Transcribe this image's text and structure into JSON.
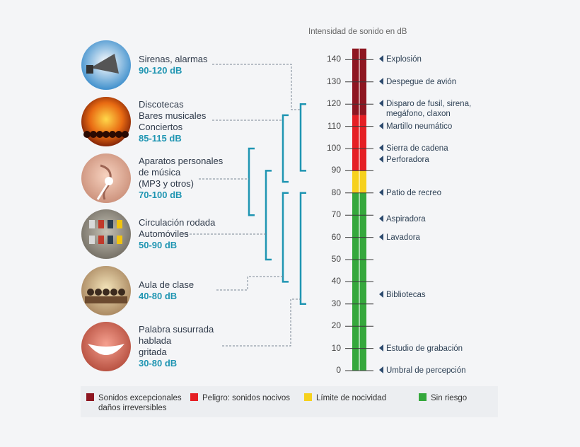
{
  "scale": {
    "title": "Intensidad de sonido en dB",
    "ticks": [
      0,
      10,
      20,
      30,
      40,
      50,
      60,
      70,
      80,
      90,
      100,
      110,
      120,
      130,
      140
    ],
    "bands": [
      {
        "from": 0,
        "to": 80,
        "color": "#35a83c",
        "level": "Sin riesgo"
      },
      {
        "from": 80,
        "to": 90,
        "color": "#f6d11d",
        "level": "Límite de nocividad"
      },
      {
        "from": 90,
        "to": 115,
        "color": "#e51f24",
        "level": "Peligro"
      },
      {
        "from": 115,
        "to": 145,
        "color": "#8e1621",
        "level": "Sonidos excepcionales"
      }
    ]
  },
  "sources": [
    {
      "id": "sirens",
      "icon": "megaphone-icon",
      "lines": [
        "Sirenas, alarmas"
      ],
      "range": "90-120 dB",
      "min": 90,
      "max": 120
    },
    {
      "id": "disco",
      "icon": "concert-crowd-icon",
      "lines": [
        "Discotecas",
        "Bares musicales",
        "Conciertos"
      ],
      "range": "85-115 dB",
      "min": 85,
      "max": 115
    },
    {
      "id": "personal-audio",
      "icon": "earphone-icon",
      "lines": [
        "Aparatos personales",
        "de música",
        "(MP3 y otros)"
      ],
      "range": "70-100 dB",
      "min": 70,
      "max": 100
    },
    {
      "id": "traffic",
      "icon": "road-traffic-icon",
      "lines": [
        "Circulación rodada",
        "Automóviles"
      ],
      "range": "50-90 dB",
      "min": 50,
      "max": 90
    },
    {
      "id": "classroom",
      "icon": "classroom-icon",
      "lines": [
        "Aula de clase"
      ],
      "range": "40-80 dB",
      "min": 40,
      "max": 80
    },
    {
      "id": "speech",
      "icon": "smiling-mouth-icon",
      "lines": [
        "Palabra susurrada",
        "hablada",
        "gritada"
      ],
      "range": "30-80 dB",
      "min": 30,
      "max": 80
    }
  ],
  "events": [
    {
      "db": 140,
      "lines": [
        "Explosión"
      ]
    },
    {
      "db": 130,
      "lines": [
        "Despegue de avión"
      ]
    },
    {
      "db": 120,
      "lines": [
        "Disparo de fusil, sirena,",
        "megáfono, claxon"
      ]
    },
    {
      "db": 110,
      "lines": [
        "Martillo neumático"
      ]
    },
    {
      "db": 100,
      "lines": [
        "Sierra de cadena"
      ]
    },
    {
      "db": 95,
      "lines": [
        "Perforadora"
      ]
    },
    {
      "db": 80,
      "lines": [
        "Patio de recreo"
      ]
    },
    {
      "db": 68,
      "lines": [
        "Aspiradora"
      ]
    },
    {
      "db": 60,
      "lines": [
        "Lavadora"
      ]
    },
    {
      "db": 34,
      "lines": [
        "Bibliotecas"
      ]
    },
    {
      "db": 10,
      "lines": [
        "Estudio de grabación"
      ]
    },
    {
      "db": 0,
      "lines": [
        "Umbral de percepción"
      ]
    }
  ],
  "legend": [
    {
      "color": "#8e1621",
      "lines": [
        "Sonidos excepcionales",
        "daños irreversibles"
      ]
    },
    {
      "color": "#e51f24",
      "lines": [
        "Peligro: sonidos nocivos"
      ]
    },
    {
      "color": "#f6d11d",
      "lines": [
        "Límite de nocividad"
      ]
    },
    {
      "color": "#35a83c",
      "lines": [
        "Sin riesgo"
      ]
    }
  ],
  "colors": {
    "bracket": "#1f95b2",
    "dashed": "#7a8795",
    "arrow": "#2c4a6e",
    "range_text": "#1f95b2"
  }
}
